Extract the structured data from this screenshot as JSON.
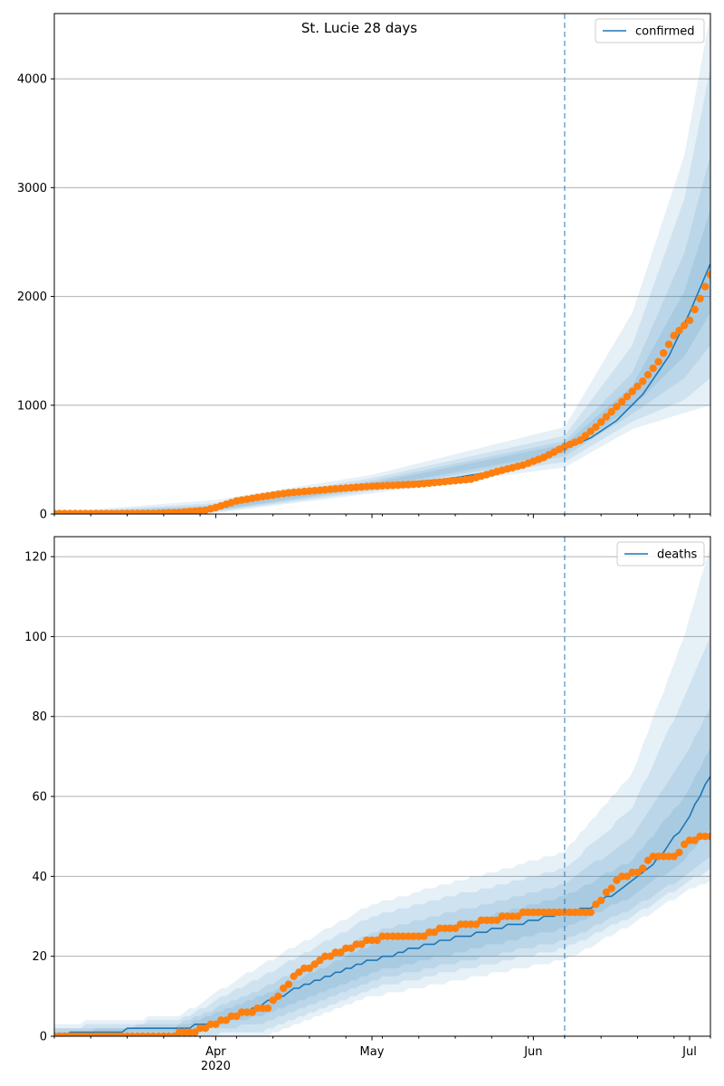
{
  "chart_data": [
    {
      "type": "line",
      "title": "St. Lucie 28 days",
      "legend": {
        "label": "confirmed",
        "position": "top-right"
      },
      "ylim": [
        0,
        4600
      ],
      "yticks": [
        0,
        1000,
        2000,
        3000,
        4000
      ],
      "grid": "y",
      "forecast_start": "2020-06-07",
      "x_range": [
        "2020-03-01",
        "2020-07-05"
      ],
      "colors": {
        "line": "#1f77b4",
        "points": "#ff7f0e",
        "band": "#1f77b4"
      },
      "observed": {
        "x": [
          "2020-03-01",
          "2020-03-10",
          "2020-03-20",
          "2020-03-25",
          "2020-03-30",
          "2020-04-01",
          "2020-04-05",
          "2020-04-10",
          "2020-04-15",
          "2020-04-20",
          "2020-04-25",
          "2020-05-01",
          "2020-05-10",
          "2020-05-20",
          "2020-05-25",
          "2020-05-30",
          "2020-06-03",
          "2020-06-07",
          "2020-06-10",
          "2020-06-13",
          "2020-06-16",
          "2020-06-19",
          "2020-06-22",
          "2020-06-25",
          "2020-06-28",
          "2020-07-01",
          "2020-07-03",
          "2020-07-05"
        ],
        "y": [
          5,
          5,
          6,
          15,
          35,
          60,
          120,
          160,
          195,
          215,
          235,
          255,
          275,
          320,
          390,
          450,
          520,
          620,
          680,
          800,
          940,
          1080,
          1220,
          1400,
          1640,
          1780,
          1980,
          2200
        ]
      },
      "median": {
        "x": [
          "2020-03-01",
          "2020-03-20",
          "2020-03-30",
          "2020-04-10",
          "2020-04-20",
          "2020-05-01",
          "2020-05-15",
          "2020-05-30",
          "2020-06-07",
          "2020-06-12",
          "2020-06-17",
          "2020-06-22",
          "2020-06-27",
          "2020-07-01",
          "2020-07-05"
        ],
        "y": [
          5,
          6,
          40,
          165,
          220,
          265,
          320,
          430,
          600,
          700,
          860,
          1100,
          1450,
          1850,
          2300
        ]
      },
      "bands": [
        {
          "x": [
            "2020-03-01",
            "2020-04-01",
            "2020-05-01",
            "2020-06-07",
            "2020-06-20",
            "2020-06-30",
            "2020-07-05"
          ],
          "lo": [
            0,
            10,
            190,
            430,
            780,
            930,
            1000
          ],
          "hi": [
            15,
            130,
            360,
            800,
            1850,
            3300,
            4600
          ]
        },
        {
          "x": [
            "2020-03-01",
            "2020-04-01",
            "2020-05-01",
            "2020-06-07",
            "2020-06-20",
            "2020-06-30",
            "2020-07-05"
          ],
          "lo": [
            0,
            20,
            210,
            480,
            850,
            1050,
            1250
          ],
          "hi": [
            12,
            100,
            330,
            720,
            1550,
            2900,
            4100
          ]
        },
        {
          "x": [
            "2020-03-01",
            "2020-04-01",
            "2020-05-01",
            "2020-06-07",
            "2020-06-20",
            "2020-06-30",
            "2020-07-05"
          ],
          "lo": [
            0,
            30,
            230,
            530,
            920,
            1250,
            1550
          ],
          "hi": [
            10,
            80,
            305,
            670,
            1300,
            2400,
            3300
          ]
        },
        {
          "x": [
            "2020-03-01",
            "2020-04-01",
            "2020-05-01",
            "2020-06-07",
            "2020-06-20",
            "2020-06-30",
            "2020-07-05"
          ],
          "lo": [
            1,
            38,
            245,
            565,
            980,
            1450,
            1850
          ],
          "hi": [
            8,
            65,
            285,
            640,
            1180,
            2050,
            2800
          ]
        }
      ]
    },
    {
      "type": "line",
      "legend": {
        "label": "deaths",
        "position": "top-right"
      },
      "ylim": [
        0,
        125
      ],
      "yticks": [
        0,
        20,
        40,
        60,
        80,
        100,
        120
      ],
      "grid": "y",
      "forecast_start": "2020-06-07",
      "x_range": [
        "2020-03-01",
        "2020-07-05"
      ],
      "xticks": [
        {
          "date": "2020-04-01",
          "label": "Apr",
          "sublabel": "2020"
        },
        {
          "date": "2020-05-01",
          "label": "May",
          "sublabel": ""
        },
        {
          "date": "2020-06-01",
          "label": "Jun",
          "sublabel": ""
        },
        {
          "date": "2020-07-01",
          "label": "Jul",
          "sublabel": ""
        }
      ],
      "colors": {
        "line": "#1f77b4",
        "points": "#ff7f0e",
        "band": "#1f77b4"
      },
      "observed": {
        "x": [
          "2020-03-01",
          "2020-03-22",
          "2020-03-27",
          "2020-04-01",
          "2020-04-06",
          "2020-04-11",
          "2020-04-16",
          "2020-04-21",
          "2020-04-26",
          "2020-05-01",
          "2020-05-05",
          "2020-05-10",
          "2020-05-15",
          "2020-05-20",
          "2020-05-27",
          "2020-06-01",
          "2020-06-07",
          "2020-06-12",
          "2020-06-15",
          "2020-06-18",
          "2020-06-21",
          "2020-06-24",
          "2020-06-28",
          "2020-07-01",
          "2020-07-05"
        ],
        "y": [
          0,
          0,
          1,
          3,
          6,
          7,
          15,
          19,
          22,
          24,
          25,
          25,
          27,
          28,
          30,
          31,
          31,
          31,
          36,
          40,
          41,
          45,
          45,
          49,
          50
        ]
      },
      "median": {
        "x": [
          "2020-03-01",
          "2020-03-06",
          "2020-03-23",
          "2020-04-01",
          "2020-04-10",
          "2020-04-20",
          "2020-05-01",
          "2020-05-15",
          "2020-06-01",
          "2020-06-07",
          "2020-06-12",
          "2020-06-18",
          "2020-06-24",
          "2020-06-30",
          "2020-07-05"
        ],
        "y": [
          0,
          1,
          2,
          3,
          8,
          14,
          19,
          24,
          29,
          31,
          32,
          37,
          43,
          53,
          65
        ]
      },
      "bands": [
        {
          "x": [
            "2020-03-01",
            "2020-03-25",
            "2020-04-10",
            "2020-05-01",
            "2020-06-07",
            "2020-06-20",
            "2020-06-30",
            "2020-07-05"
          ],
          "lo": [
            0,
            0,
            0,
            10,
            19,
            28,
            36,
            39
          ],
          "hi": [
            3,
            5,
            18,
            33,
            46,
            66,
            100,
            123
          ]
        },
        {
          "x": [
            "2020-03-01",
            "2020-03-25",
            "2020-04-10",
            "2020-05-01",
            "2020-06-07",
            "2020-06-20",
            "2020-06-30",
            "2020-07-05"
          ],
          "lo": [
            0,
            0,
            1,
            12,
            22,
            30,
            38,
            42
          ],
          "hi": [
            2,
            4,
            15,
            30,
            42,
            57,
            85,
            100
          ]
        },
        {
          "x": [
            "2020-03-01",
            "2020-03-25",
            "2020-04-10",
            "2020-05-01",
            "2020-06-07",
            "2020-06-20",
            "2020-06-30",
            "2020-07-05"
          ],
          "lo": [
            0,
            1,
            3,
            14,
            24,
            32,
            40,
            45
          ],
          "hi": [
            1.5,
            3,
            12,
            26,
            38,
            50,
            70,
            82
          ]
        },
        {
          "x": [
            "2020-03-01",
            "2020-03-25",
            "2020-04-10",
            "2020-05-01",
            "2020-06-07",
            "2020-06-20",
            "2020-06-30",
            "2020-07-05"
          ],
          "lo": [
            0,
            1.5,
            5,
            16,
            27,
            35,
            44,
            52
          ],
          "hi": [
            1,
            2.5,
            10,
            23,
            35,
            44,
            60,
            72
          ]
        }
      ]
    }
  ]
}
